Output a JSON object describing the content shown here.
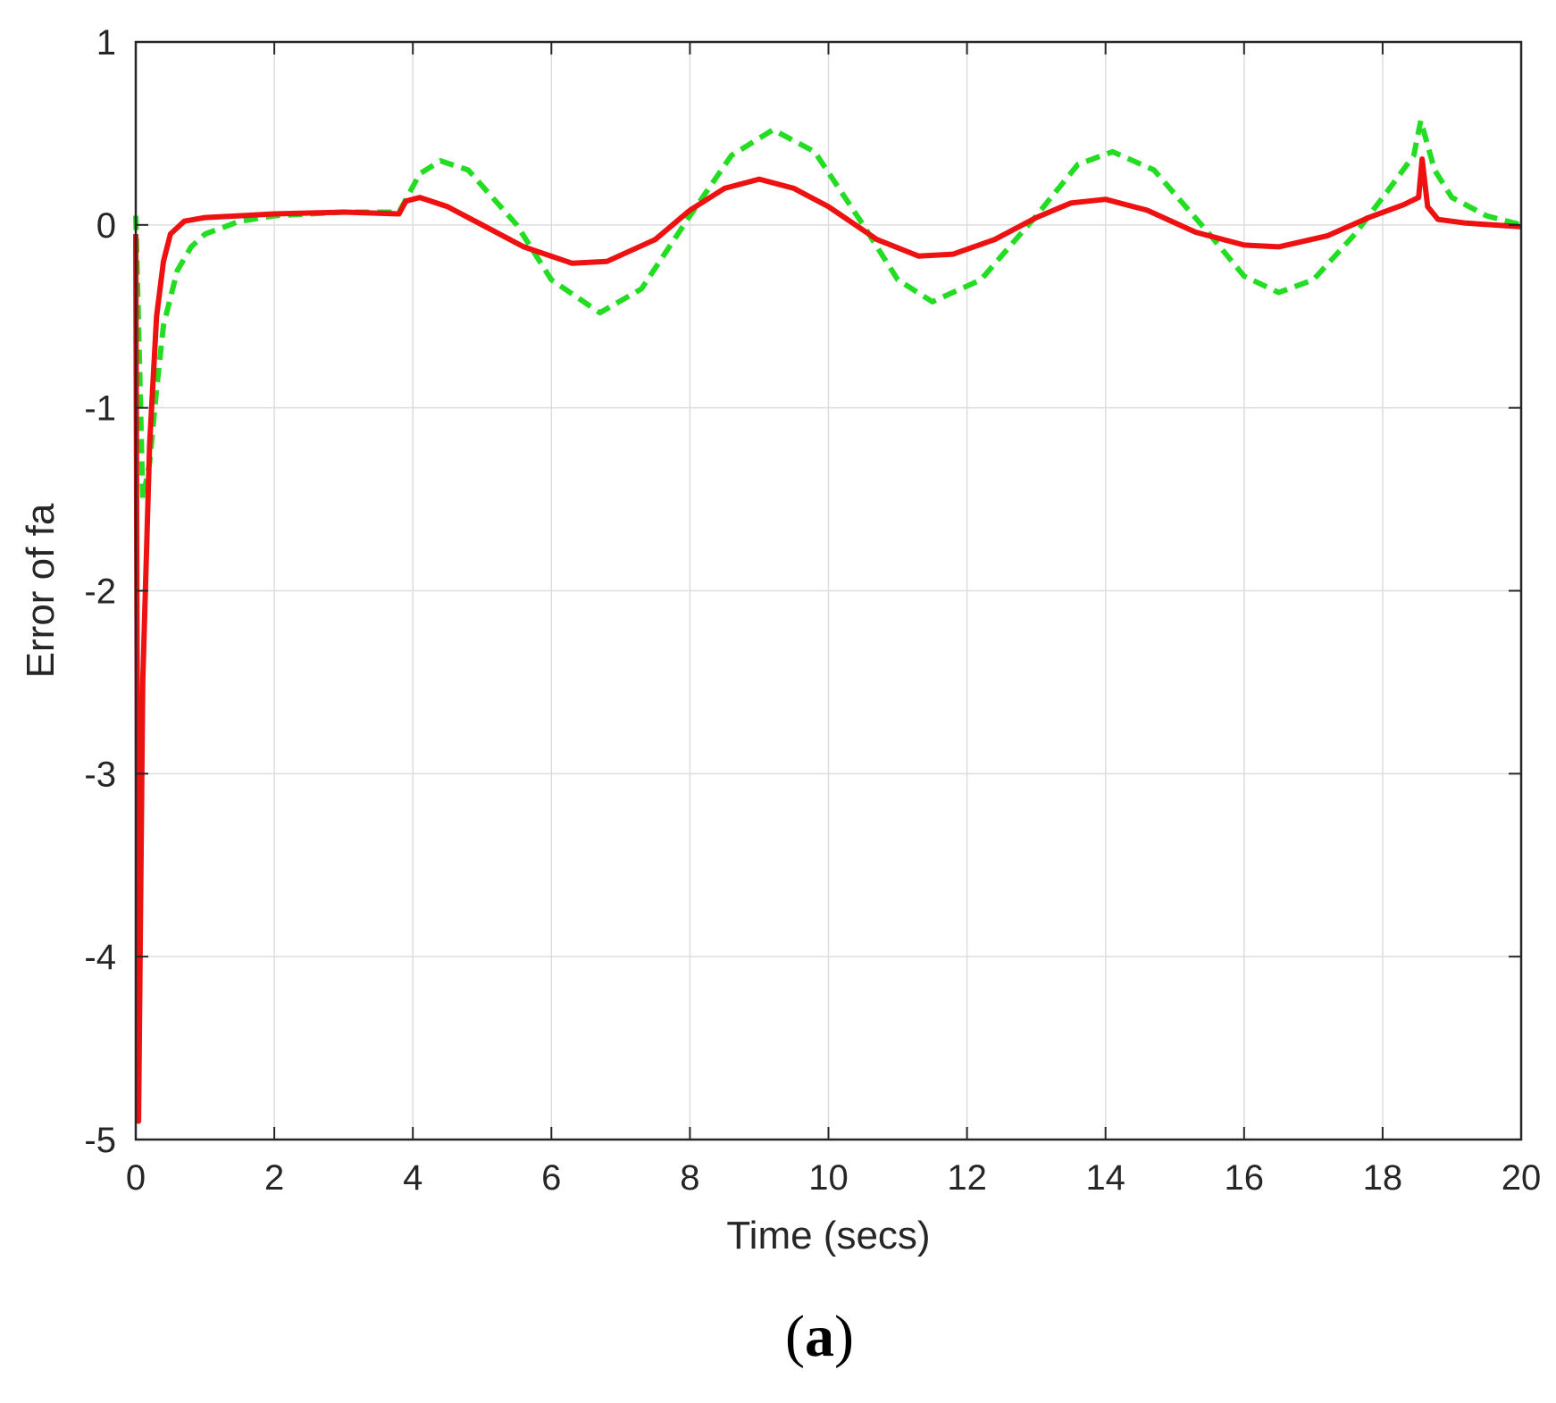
{
  "chart_data": {
    "type": "line",
    "title": "",
    "xlabel": "Time (secs)",
    "ylabel": "Error of fa",
    "panel_label_letter": "a",
    "xlim": [
      0,
      20
    ],
    "ylim": [
      -5,
      1
    ],
    "xticks": [
      "0",
      "2",
      "4",
      "6",
      "8",
      "10",
      "12",
      "14",
      "16",
      "18",
      "20"
    ],
    "yticks": [
      "1",
      "0",
      "-1",
      "-2",
      "-3",
      "-4",
      "-5"
    ],
    "grid": true,
    "legend": "none",
    "series": [
      {
        "color": "#22dd22",
        "style": "dashed",
        "points": [
          [
            0,
            0.05
          ],
          [
            0.05,
            -0.7
          ],
          [
            0.1,
            -1.5
          ],
          [
            0.2,
            -1.3
          ],
          [
            0.3,
            -0.9
          ],
          [
            0.4,
            -0.55
          ],
          [
            0.6,
            -0.25
          ],
          [
            0.8,
            -0.12
          ],
          [
            1.0,
            -0.05
          ],
          [
            1.5,
            0.02
          ],
          [
            2,
            0.05
          ],
          [
            3,
            0.07
          ],
          [
            3.8,
            0.07
          ],
          [
            4.1,
            0.28
          ],
          [
            4.4,
            0.35
          ],
          [
            4.8,
            0.3
          ],
          [
            5.5,
            0.0
          ],
          [
            6.0,
            -0.3
          ],
          [
            6.7,
            -0.48
          ],
          [
            7.3,
            -0.35
          ],
          [
            8.0,
            0.05
          ],
          [
            8.6,
            0.38
          ],
          [
            9.2,
            0.52
          ],
          [
            9.8,
            0.4
          ],
          [
            10.5,
            0.0
          ],
          [
            11.0,
            -0.3
          ],
          [
            11.5,
            -0.42
          ],
          [
            12.2,
            -0.3
          ],
          [
            13.0,
            0.05
          ],
          [
            13.6,
            0.33
          ],
          [
            14.1,
            0.4
          ],
          [
            14.7,
            0.3
          ],
          [
            15.5,
            -0.05
          ],
          [
            16.0,
            -0.28
          ],
          [
            16.5,
            -0.37
          ],
          [
            17.0,
            -0.3
          ],
          [
            17.6,
            -0.05
          ],
          [
            18.1,
            0.2
          ],
          [
            18.45,
            0.38
          ],
          [
            18.55,
            0.57
          ],
          [
            18.75,
            0.3
          ],
          [
            19.0,
            0.15
          ],
          [
            19.5,
            0.05
          ],
          [
            20,
            0.0
          ]
        ]
      },
      {
        "color": "#ee1111",
        "style": "solid",
        "points": [
          [
            0,
            -0.05
          ],
          [
            0.04,
            -4.9
          ],
          [
            0.1,
            -2.5
          ],
          [
            0.2,
            -1.2
          ],
          [
            0.3,
            -0.5
          ],
          [
            0.4,
            -0.2
          ],
          [
            0.5,
            -0.05
          ],
          [
            0.7,
            0.02
          ],
          [
            1.0,
            0.04
          ],
          [
            1.5,
            0.05
          ],
          [
            2,
            0.06
          ],
          [
            3,
            0.07
          ],
          [
            3.8,
            0.06
          ],
          [
            3.9,
            0.13
          ],
          [
            4.1,
            0.15
          ],
          [
            4.5,
            0.1
          ],
          [
            5.0,
            0.0
          ],
          [
            5.6,
            -0.12
          ],
          [
            6.3,
            -0.21
          ],
          [
            6.8,
            -0.2
          ],
          [
            7.5,
            -0.08
          ],
          [
            8.0,
            0.08
          ],
          [
            8.5,
            0.2
          ],
          [
            9.0,
            0.25
          ],
          [
            9.5,
            0.2
          ],
          [
            10.0,
            0.1
          ],
          [
            10.7,
            -0.08
          ],
          [
            11.3,
            -0.17
          ],
          [
            11.8,
            -0.16
          ],
          [
            12.4,
            -0.08
          ],
          [
            13.0,
            0.04
          ],
          [
            13.5,
            0.12
          ],
          [
            14.0,
            0.14
          ],
          [
            14.6,
            0.08
          ],
          [
            15.3,
            -0.04
          ],
          [
            16.0,
            -0.11
          ],
          [
            16.5,
            -0.12
          ],
          [
            17.2,
            -0.06
          ],
          [
            17.8,
            0.04
          ],
          [
            18.3,
            0.11
          ],
          [
            18.52,
            0.15
          ],
          [
            18.57,
            0.36
          ],
          [
            18.65,
            0.1
          ],
          [
            18.8,
            0.03
          ],
          [
            19.2,
            0.01
          ],
          [
            20,
            -0.01
          ]
        ]
      }
    ]
  }
}
